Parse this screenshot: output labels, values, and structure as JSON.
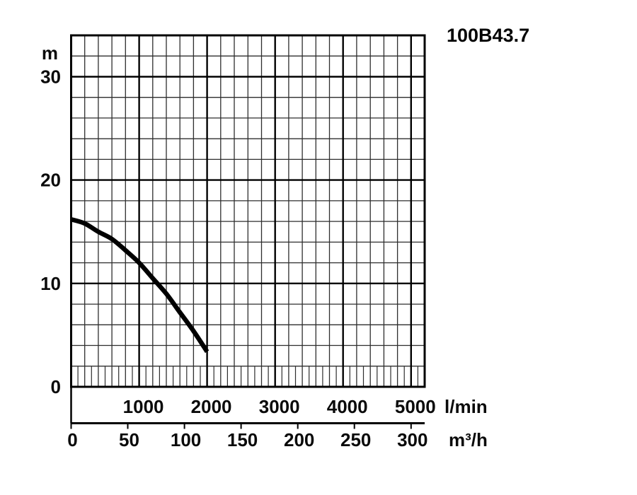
{
  "title_block": {
    "model": "100B43.7"
  },
  "colors": {
    "background": "#ffffff",
    "ink": "#000000",
    "grid_minor": "#2e2e2e",
    "curve": "#000000"
  },
  "chart_data": {
    "type": "line",
    "title": "100B43.7",
    "grid": "on",
    "legend": "none",
    "y": {
      "label": "m",
      "min": 0,
      "max": 34,
      "major_ticks": [
        0,
        10,
        20,
        30
      ],
      "minor_step": 2
    },
    "x_primary": {
      "label": "l/min",
      "min": 0,
      "max": 5200,
      "major_ticks": [
        1000,
        2000,
        3000,
        4000,
        5000
      ],
      "minor_step": 200,
      "fine_step": 100
    },
    "x_secondary": {
      "label": "m³/h",
      "ticks": [
        0,
        50,
        100,
        150,
        200,
        250,
        300
      ],
      "lmin_per_unit": 16.6667
    },
    "series": [
      {
        "name": "head-flow-curve",
        "x_lmin": [
          0,
          200,
          400,
          600,
          800,
          1000,
          1200,
          1400,
          1600,
          1800,
          2000
        ],
        "y_m": [
          16.2,
          15.8,
          15.0,
          14.3,
          13.2,
          12.0,
          10.5,
          9.0,
          7.2,
          5.4,
          3.4
        ]
      }
    ]
  }
}
